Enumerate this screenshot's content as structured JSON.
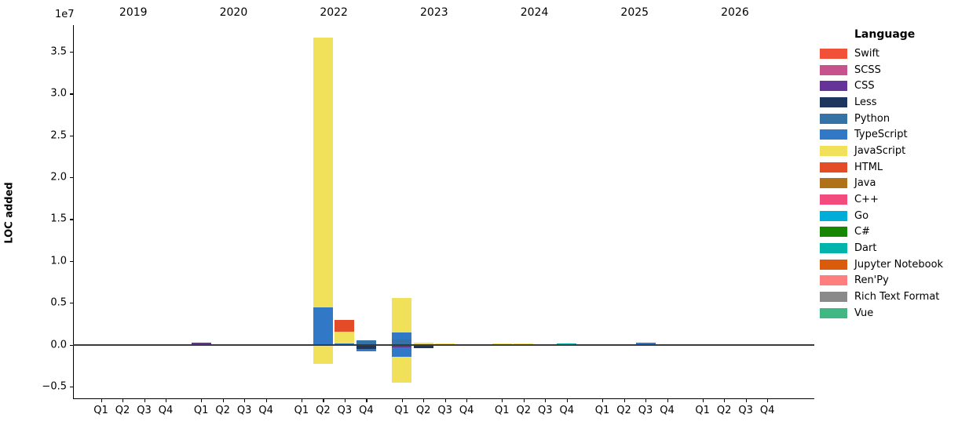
{
  "figure": {
    "ylabel": "LOC added",
    "offset_label": "1e7",
    "legend_title": "Language"
  },
  "chart_data": {
    "type": "bar",
    "stacked": true,
    "title": "",
    "xlabel": "",
    "ylabel": "LOC added",
    "y_offset_multiplier": "1e7",
    "ylim": [
      -6400000,
      38000000
    ],
    "grid": false,
    "legend_position": "right",
    "years": [
      "2019",
      "2020",
      "2022",
      "2023",
      "2024",
      "2025",
      "2026"
    ],
    "quarters": [
      "Q1",
      "Q2",
      "Q3",
      "Q4"
    ],
    "y_ticks": [
      {
        "value": 35000000,
        "label": "3.5"
      },
      {
        "value": 30000000,
        "label": "3.0"
      },
      {
        "value": 25000000,
        "label": "2.5"
      },
      {
        "value": 20000000,
        "label": "2.0"
      },
      {
        "value": 15000000,
        "label": "1.5"
      },
      {
        "value": 10000000,
        "label": "1.0"
      },
      {
        "value": 5000000,
        "label": "0.5"
      },
      {
        "value": 0,
        "label": "0.0"
      },
      {
        "value": -5000000,
        "label": "−0.5"
      }
    ],
    "legend": [
      {
        "language": "Swift",
        "color": "#F05138"
      },
      {
        "language": "SCSS",
        "color": "#C6538C"
      },
      {
        "language": "CSS",
        "color": "#663399"
      },
      {
        "language": "Less",
        "color": "#1D365D"
      },
      {
        "language": "Python",
        "color": "#3572A5"
      },
      {
        "language": "TypeScript",
        "color": "#3178C6"
      },
      {
        "language": "JavaScript",
        "color": "#F1E05A"
      },
      {
        "language": "HTML",
        "color": "#E34C26"
      },
      {
        "language": "Java",
        "color": "#B07219"
      },
      {
        "language": "C++",
        "color": "#F34B7D"
      },
      {
        "language": "Go",
        "color": "#00ADD8"
      },
      {
        "language": "C#",
        "color": "#178600"
      },
      {
        "language": "Dart",
        "color": "#00B4AB"
      },
      {
        "language": "Jupyter Notebook",
        "color": "#DA5B0B"
      },
      {
        "language": "Ren'Py",
        "color": "#FF7F7F"
      },
      {
        "language": "Rich Text Format",
        "color": "#8A8A8A"
      },
      {
        "language": "Vue",
        "color": "#41B883"
      }
    ],
    "bars": [
      {
        "year": "2020",
        "quarter": "Q1",
        "segments": [
          {
            "language": "CSS",
            "from": 0,
            "to": 280000
          }
        ]
      },
      {
        "year": "2022",
        "quarter": "Q2",
        "segments": [
          {
            "language": "TypeScript",
            "from": 0,
            "to": 4470000
          },
          {
            "language": "JavaScript",
            "from": 4470000,
            "to": 36700000
          },
          {
            "language": "JavaScript",
            "from": 0,
            "to": -2340000
          }
        ]
      },
      {
        "year": "2022",
        "quarter": "Q3",
        "segments": [
          {
            "language": "TypeScript",
            "from": 0,
            "to": 160000
          },
          {
            "language": "JavaScript",
            "from": 160000,
            "to": 1570000
          },
          {
            "language": "HTML",
            "from": 1570000,
            "to": 2970000
          }
        ]
      },
      {
        "year": "2022",
        "quarter": "Q4",
        "segments": [
          {
            "language": "Python",
            "from": 0,
            "to": 530000
          },
          {
            "language": "Less",
            "from": 0,
            "to": -560000
          },
          {
            "language": "TypeScript",
            "from": -560000,
            "to": -800000
          }
        ]
      },
      {
        "year": "2023",
        "quarter": "Q1",
        "segments": [
          {
            "language": "Python",
            "from": 0,
            "to": 630000
          },
          {
            "language": "TypeScript",
            "from": 630000,
            "to": 1410000
          },
          {
            "language": "JavaScript",
            "from": 1410000,
            "to": 5620000
          },
          {
            "language": "CSS",
            "from": 0,
            "to": -300000
          },
          {
            "language": "TypeScript",
            "from": -300000,
            "to": -1410000
          },
          {
            "language": "JavaScript",
            "from": -1410000,
            "to": -4530000
          }
        ]
      },
      {
        "year": "2023",
        "quarter": "Q2",
        "segments": [
          {
            "language": "JavaScript",
            "from": 0,
            "to": 280000
          },
          {
            "language": "Less",
            "from": 0,
            "to": -420000
          }
        ]
      },
      {
        "year": "2023",
        "quarter": "Q3",
        "segments": [
          {
            "language": "JavaScript",
            "from": 0,
            "to": 120000
          }
        ]
      },
      {
        "year": "2024",
        "quarter": "Q1",
        "segments": [
          {
            "language": "JavaScript",
            "from": 0,
            "to": 180000
          }
        ]
      },
      {
        "year": "2024",
        "quarter": "Q2",
        "segments": [
          {
            "language": "JavaScript",
            "from": 0,
            "to": 120000
          }
        ]
      },
      {
        "year": "2024",
        "quarter": "Q4",
        "segments": [
          {
            "language": "Dart",
            "from": 0,
            "to": 120000
          }
        ]
      },
      {
        "year": "2025",
        "quarter": "Q3",
        "segments": [
          {
            "language": "TypeScript",
            "from": 0,
            "to": 230000
          }
        ]
      }
    ]
  }
}
